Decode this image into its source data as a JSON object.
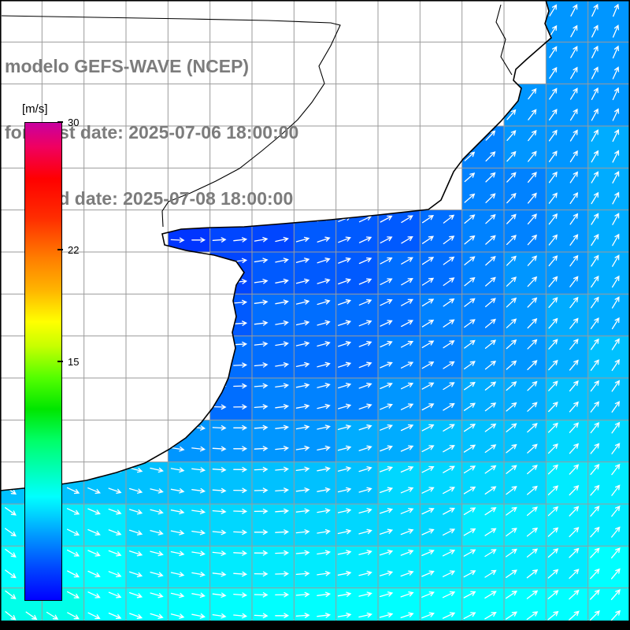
{
  "header": {
    "line1": "modelo GEFS-WAVE (NCEP)",
    "line2": "forecast date: 2025-07-06 18:00:00",
    "line3": "valid date: 2025-07-08 18:00:00",
    "text_color": "#7c7c7c"
  },
  "colorbar": {
    "unit_label": "[m/s]",
    "min": 0,
    "max": 30,
    "ticks": [
      {
        "label": "30",
        "value": 30
      },
      {
        "label": "22",
        "value": 22
      },
      {
        "label": "15",
        "value": 15
      }
    ]
  },
  "chart_data": {
    "type": "heatmap",
    "title": "modelo GEFS-WAVE (NCEP)",
    "subtitle_lines": [
      "forecast date: 2025-07-06 18:00:00",
      "valid date: 2025-07-08 18:00:00"
    ],
    "variable": "wind speed with wind direction arrows over ocean",
    "units": "m/s",
    "scale_min": 0,
    "scale_max": 30,
    "grid_rows": 15,
    "grid_cols": 15,
    "land_color": "#ffffff",
    "values": [
      [
        null,
        null,
        null,
        null,
        null,
        null,
        null,
        null,
        null,
        null,
        null,
        null,
        null,
        4,
        4
      ],
      [
        null,
        null,
        null,
        null,
        null,
        null,
        null,
        null,
        null,
        null,
        null,
        null,
        null,
        4,
        4
      ],
      [
        null,
        null,
        null,
        null,
        null,
        null,
        null,
        null,
        null,
        null,
        null,
        null,
        4,
        4,
        4
      ],
      [
        null,
        null,
        null,
        null,
        null,
        null,
        null,
        null,
        null,
        null,
        null,
        3.5,
        4,
        4,
        4.5
      ],
      [
        null,
        null,
        null,
        null,
        null,
        null,
        null,
        null,
        null,
        null,
        null,
        3.5,
        3.5,
        4,
        4.5
      ],
      [
        null,
        null,
        null,
        null,
        1.5,
        2,
        2,
        2.5,
        2.5,
        2.5,
        3,
        3.5,
        3.5,
        4,
        4.5
      ],
      [
        null,
        null,
        null,
        null,
        null,
        2,
        2.5,
        2.5,
        2.5,
        3,
        3,
        3.5,
        4,
        4,
        4.5
      ],
      [
        null,
        null,
        null,
        null,
        null,
        2.5,
        3,
        3,
        3,
        3,
        3.5,
        3.5,
        4,
        4.5,
        4.5
      ],
      [
        null,
        null,
        null,
        null,
        null,
        3,
        3,
        3,
        3,
        3.5,
        3.5,
        4,
        4,
        4.5,
        5
      ],
      [
        null,
        null,
        null,
        null,
        null,
        3,
        3.5,
        3.5,
        3.5,
        4,
        4,
        4.5,
        4.5,
        5,
        5
      ],
      [
        null,
        null,
        null,
        null,
        4,
        4,
        4,
        4,
        4.5,
        4.5,
        5,
        5,
        5,
        5.5,
        5.5
      ],
      [
        5,
        5,
        5,
        5,
        5,
        5,
        5,
        5,
        5,
        5.5,
        5.5,
        5.5,
        5.5,
        6,
        6
      ],
      [
        6,
        6,
        6,
        5.5,
        5.5,
        5.5,
        5.5,
        5.5,
        5.5,
        5.5,
        5.5,
        6,
        6,
        6,
        6
      ],
      [
        6.5,
        6.5,
        6.5,
        6,
        6,
        6,
        6,
        6,
        6,
        6,
        6,
        6,
        6,
        6,
        6.5
      ],
      [
        7,
        7,
        6.5,
        6.5,
        6.5,
        6.5,
        6.5,
        6.5,
        6.5,
        6.5,
        6.5,
        6.5,
        6.5,
        6.5,
        6.5
      ]
    ],
    "colormap_stops": [
      [
        0,
        "#0000ff"
      ],
      [
        2,
        "#0046ff"
      ],
      [
        4,
        "#0096ff"
      ],
      [
        5.5,
        "#00d7ff"
      ],
      [
        6.5,
        "#00ffff"
      ],
      [
        8,
        "#00ffbe"
      ],
      [
        10,
        "#00ff69"
      ],
      [
        12,
        "#00e600"
      ],
      [
        14,
        "#55ff00"
      ],
      [
        16,
        "#c8ff00"
      ],
      [
        17.5,
        "#ffff00"
      ],
      [
        19.5,
        "#ffb400"
      ],
      [
        21.5,
        "#ff7d00"
      ],
      [
        24,
        "#ff2d00"
      ],
      [
        26.5,
        "#ff0000"
      ],
      [
        28.5,
        "#f00060"
      ],
      [
        30,
        "#c800a0"
      ]
    ],
    "wind_field": {
      "base_deg": 20,
      "x_coeff_deg": -90,
      "y_coeff_deg": 20,
      "spacing_px": 26.5,
      "arrow_color": "#ffffff"
    }
  },
  "map": {
    "grid_divisions": 15,
    "grid_color": "#9b9b9b",
    "coast_color": "#000000",
    "coastline": [
      [
        693,
        0
      ],
      [
        697,
        14
      ],
      [
        692,
        30
      ],
      [
        700,
        48
      ],
      [
        684,
        62
      ],
      [
        668,
        76
      ],
      [
        655,
        88
      ],
      [
        652,
        102
      ],
      [
        662,
        112
      ],
      [
        658,
        128
      ],
      [
        648,
        140
      ],
      [
        636,
        154
      ],
      [
        620,
        170
      ],
      [
        604,
        186
      ],
      [
        588,
        202
      ],
      [
        576,
        218
      ],
      [
        568,
        236
      ],
      [
        560,
        254
      ],
      [
        544,
        266
      ],
      [
        480,
        273
      ],
      [
        420,
        279
      ],
      [
        360,
        284
      ],
      [
        310,
        288
      ],
      [
        268,
        289
      ],
      [
        230,
        291
      ],
      [
        206,
        297
      ],
      [
        209,
        311
      ],
      [
        236,
        318
      ],
      [
        272,
        324
      ],
      [
        300,
        332
      ],
      [
        310,
        346
      ],
      [
        300,
        362
      ],
      [
        296,
        382
      ],
      [
        300,
        402
      ],
      [
        295,
        422
      ],
      [
        299,
        442
      ],
      [
        294,
        462
      ],
      [
        290,
        480
      ],
      [
        282,
        498
      ],
      [
        270,
        518
      ],
      [
        256,
        536
      ],
      [
        236,
        556
      ],
      [
        214,
        571
      ],
      [
        184,
        588
      ],
      [
        148,
        600
      ],
      [
        110,
        610
      ],
      [
        70,
        616
      ],
      [
        30,
        620
      ],
      [
        0,
        623
      ]
    ],
    "rivers": [
      [
        [
          2,
          20
        ],
        [
          120,
          22
        ],
        [
          240,
          24
        ],
        [
          340,
          26
        ],
        [
          420,
          29
        ],
        [
          432,
          32
        ],
        [
          420,
          58
        ],
        [
          405,
          84
        ],
        [
          412,
          106
        ],
        [
          396,
          130
        ],
        [
          378,
          152
        ],
        [
          356,
          172
        ],
        [
          332,
          192
        ],
        [
          304,
          214
        ],
        [
          274,
          230
        ],
        [
          242,
          245
        ],
        [
          214,
          256
        ],
        [
          206,
          268
        ],
        [
          207,
          288
        ]
      ],
      [
        [
          650,
          95
        ],
        [
          636,
          72
        ],
        [
          642,
          50
        ],
        [
          630,
          28
        ],
        [
          636,
          6
        ]
      ]
    ]
  }
}
